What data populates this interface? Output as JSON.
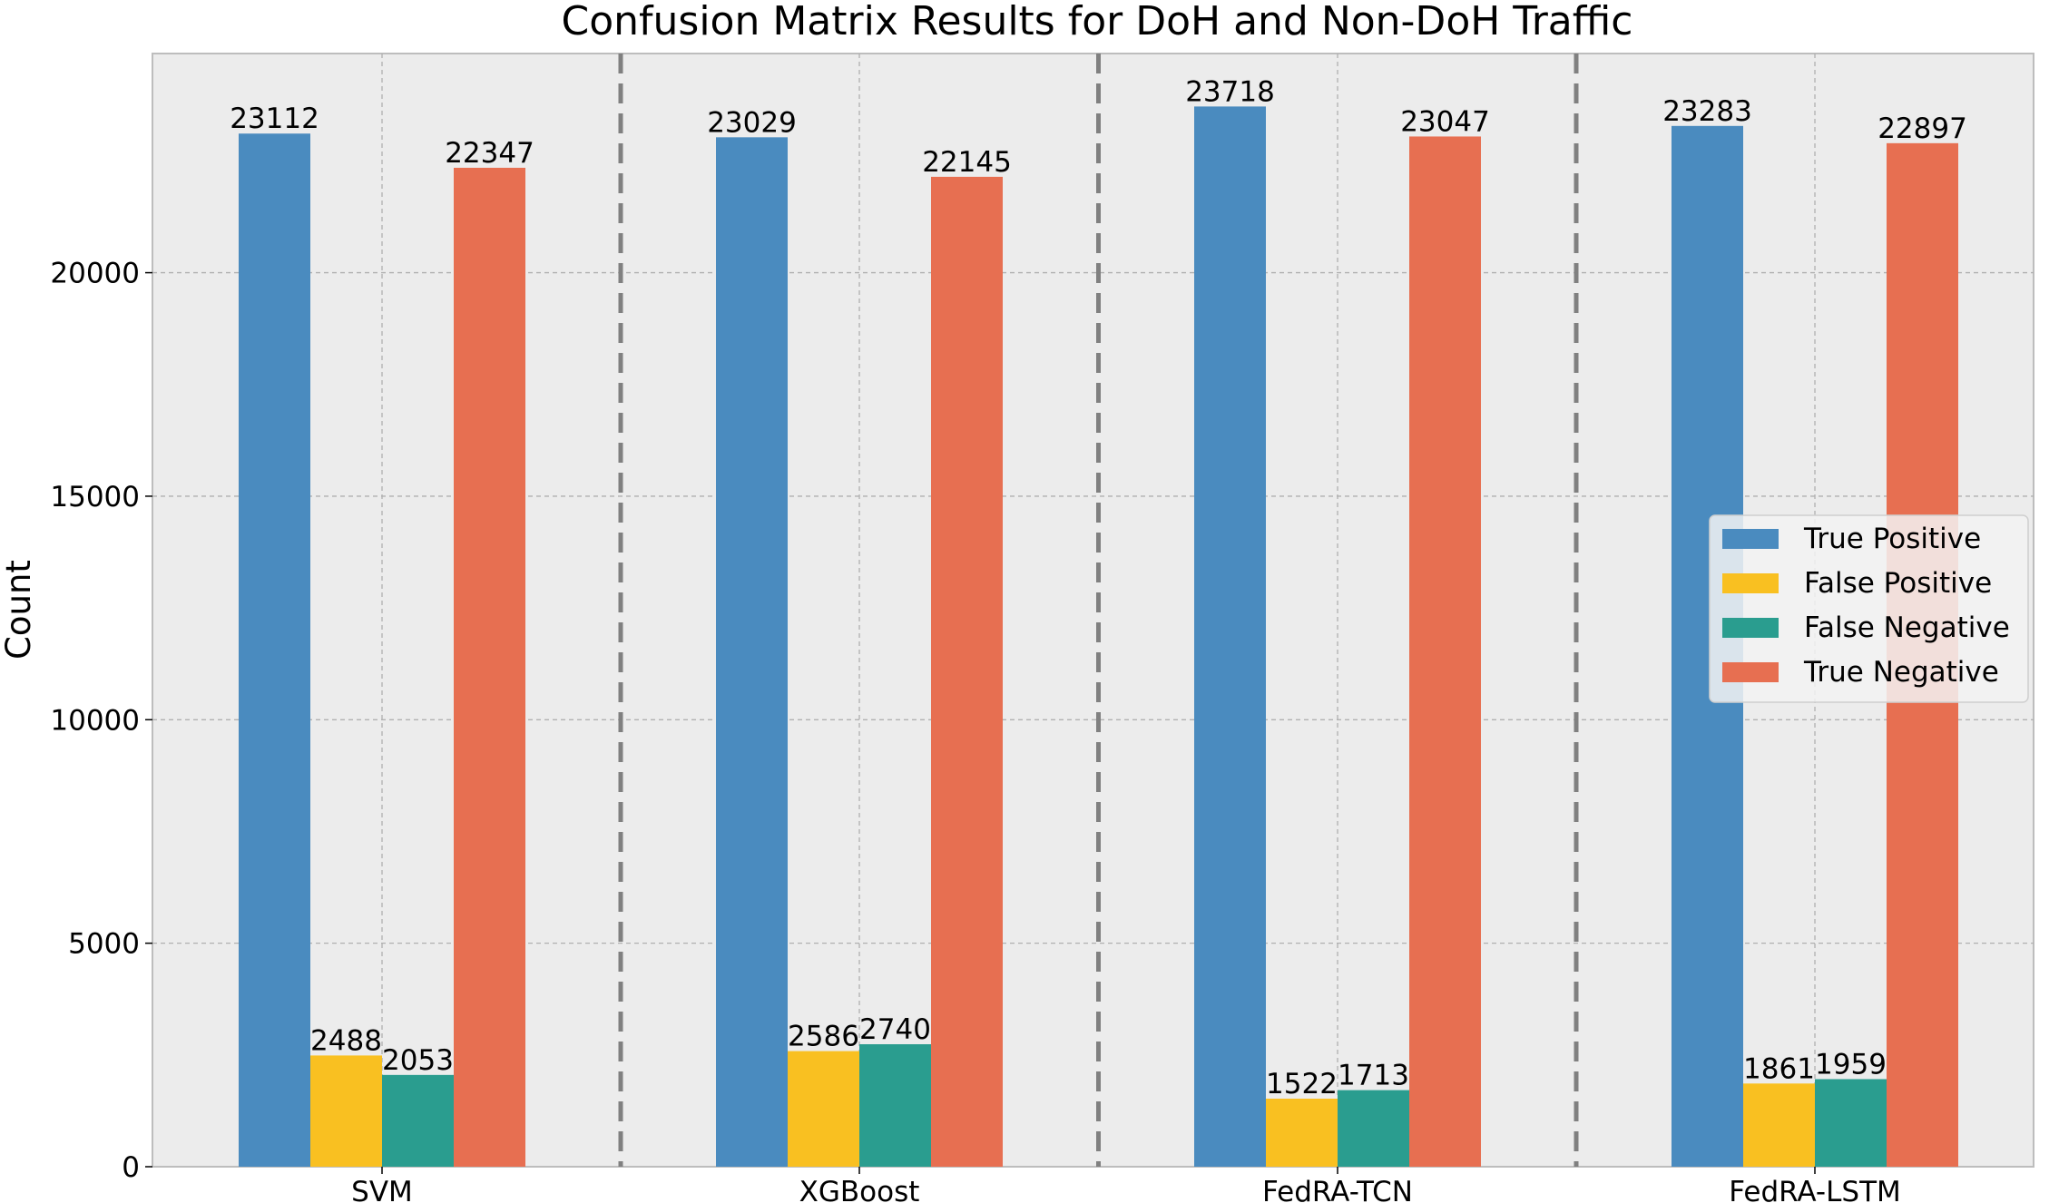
{
  "chart_data": {
    "type": "bar",
    "title": "Confusion Matrix Results for DoH and Non-DoH Traffic",
    "xlabel": "",
    "ylabel": "Count",
    "categories": [
      "SVM",
      "XGBoost",
      "FedRA-TCN",
      "FedRA-LSTM"
    ],
    "series": [
      {
        "name": "True Positive",
        "color": "#4a8bbf",
        "values": [
          23112,
          23029,
          23718,
          23283
        ]
      },
      {
        "name": "False Positive",
        "color": "#f9c021",
        "values": [
          2488,
          2586,
          1522,
          1861
        ]
      },
      {
        "name": "False Negative",
        "color": "#2a9d8f",
        "values": [
          2053,
          2740,
          1713,
          1959
        ]
      },
      {
        "name": "True Negative",
        "color": "#e76f51",
        "values": [
          22347,
          22145,
          23047,
          22897
        ]
      }
    ],
    "ylim": [
      0,
      24903
    ],
    "yticks": [
      0,
      5000,
      10000,
      15000,
      20000
    ],
    "grid": true,
    "legend_position": "center-right",
    "group_separators": "dashed"
  }
}
